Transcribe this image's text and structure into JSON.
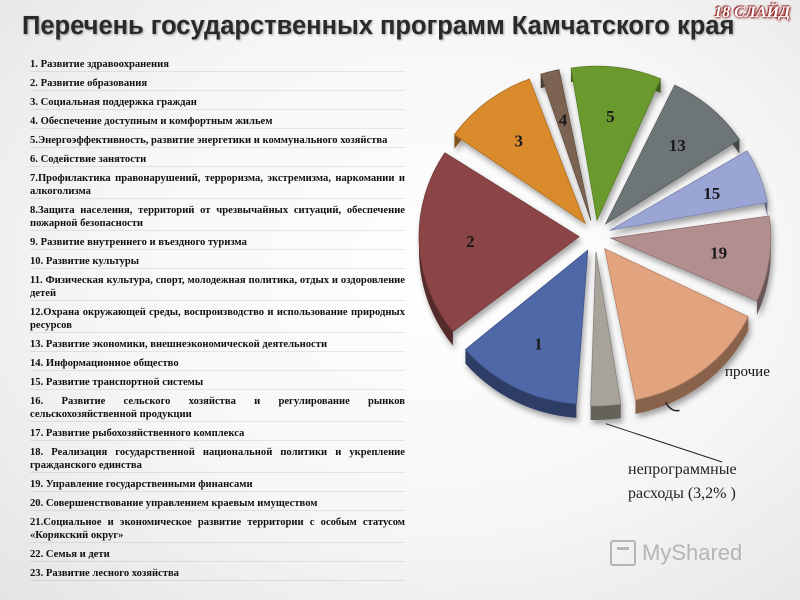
{
  "header": {
    "title": "Перечень государственных программ Камчатского края",
    "slide_number": "18 СЛАЙД"
  },
  "programs": [
    "1. Развитие здравоохранения",
    "2. Развитие образования",
    "3. Социальная поддержка граждан",
    "4. Обеспечение доступным и комфортным жильем",
    "5.Энергоэффективность, развитие энергетики и коммунального хозяйства",
    "6. Содействие занятости",
    "7.Профилактика правонарушений, терроризма, экстремизма, наркомании и алкоголизма",
    "8.Защита населения, территорий от чрезвычайных ситуаций, обеспечение пожарной безопасности",
    "9. Развитие внутреннего и въездного туризма",
    "10. Развитие культуры",
    "11. Физическая культура, спорт, молодежная политика, отдых и оздоровление детей",
    "12.Охрана окружающей среды, воспроизводство и использование природных ресурсов",
    "13. Развитие экономики, внешнеэкономической деятельности",
    "14. Информационное общество",
    "15. Развитие транспортной системы",
    "16. Развитие сельского хозяйства и регулирование рынков сельскохозяйственной продукции",
    "17. Развитие рыбохозяйственного комплекса",
    "18. Реализация государственной национальной политики и укрепление гражданского единства",
    "19. Управление государственными финансами",
    "20. Совершенствование управлением краевым имуществом",
    "21.Социальное и экономическое развитие территории с особым статусом «Корякский округ»",
    "22. Семья и дети",
    "23. Развитие лесного хозяйства"
  ],
  "chart_data": {
    "type": "pie",
    "exploded": true,
    "style": "3d",
    "slices": [
      {
        "label": "1",
        "value": 11.8,
        "color": "#4f68a8"
      },
      {
        "label": "2",
        "value": 18.0,
        "color": "#8c4546"
      },
      {
        "label": "3",
        "value": 9.0,
        "color": "#d98a2c"
      },
      {
        "label": "4",
        "value": 2.2,
        "color": "#7b6451"
      },
      {
        "label": "5",
        "value": 8.6,
        "color": "#6a9a2d"
      },
      {
        "label": "13",
        "value": 8.2,
        "color": "#6e7577"
      },
      {
        "label": "15",
        "value": 5.6,
        "color": "#9aa5d6"
      },
      {
        "label": "19",
        "value": 8.5,
        "color": "#b28f8f"
      },
      {
        "label": "прочие",
        "value": 13.5,
        "color": "#e2a37f"
      },
      {
        "label": "непрограммные расходы (3,2% )",
        "value": 3.2,
        "color": "#a8a39a"
      }
    ]
  },
  "annotations": {
    "other": "прочие",
    "non_program": "непрограммные расходы (3,2% )"
  },
  "watermark": "MyShared"
}
